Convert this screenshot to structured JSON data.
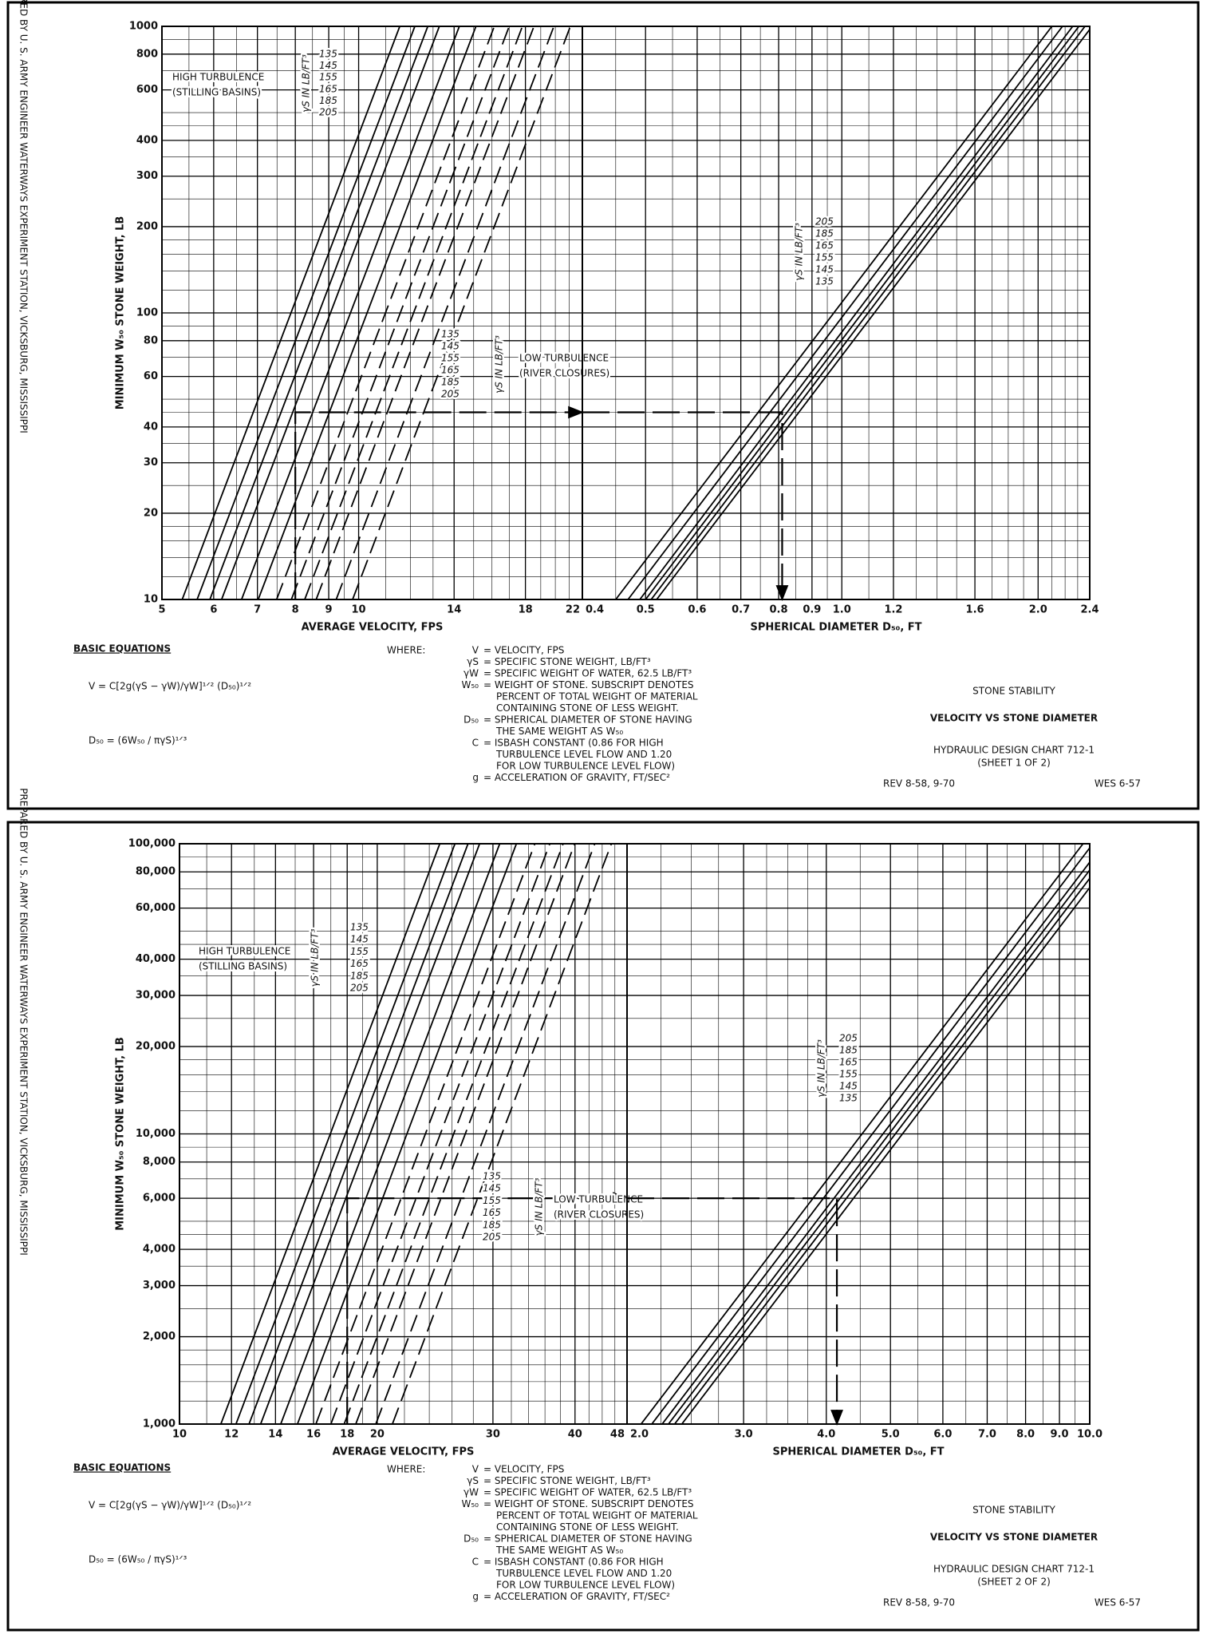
{
  "sheets": [
    {
      "side_note": "PREPARED BY U. S. ARMY ENGINEER WATERWAYS EXPERIMENT STATION, VICKSBURG, MISSISSIPPI",
      "equations_title": "BASIC EQUATIONS",
      "equations": [
        "V = C[2g(γS − γW)/γW]¹ᐟ² (D₅₀)¹ᐟ²",
        "D₅₀ = (6W₅₀ / πγS)¹ᐟ³"
      ],
      "where_label": "WHERE:",
      "definitions": [
        {
          "symbol": "V",
          "text": [
            "= VELOCITY, FPS"
          ]
        },
        {
          "symbol": "γS",
          "text": [
            "= SPECIFIC STONE WEIGHT, LB/FT³"
          ]
        },
        {
          "symbol": "γW",
          "text": [
            "= SPECIFIC WEIGHT OF WATER, 62.5 LB/FT³"
          ]
        },
        {
          "symbol": "W₅₀",
          "text": [
            "= WEIGHT OF STONE. SUBSCRIPT DENOTES",
            "PERCENT OF TOTAL WEIGHT OF MATERIAL",
            "CONTAINING STONE OF LESS WEIGHT."
          ]
        },
        {
          "symbol": "D₅₀",
          "text": [
            "= SPHERICAL DIAMETER OF STONE HAVING",
            "THE SAME WEIGHT AS W₅₀"
          ]
        },
        {
          "symbol": "C",
          "text": [
            "= ISBASH CONSTANT  (0.86 FOR HIGH",
            "TURBULENCE LEVEL FLOW AND 1.20",
            "FOR LOW TURBULENCE LEVEL FLOW)"
          ]
        },
        {
          "symbol": "g",
          "text": [
            "= ACCELERATION OF GRAVITY, FT/SEC²"
          ]
        }
      ],
      "title": "STONE STABILITY",
      "subtitle": "VELOCITY VS STONE DIAMETER",
      "chart_name": "HYDRAULIC DESIGN CHART 712-1",
      "sheet_label": "(SHEET 1 OF 2)",
      "revision": "REV 8-58, 9-70",
      "origin": "WES 6-57"
    },
    {
      "side_note": "PREPARED BY U. S. ARMY ENGINEER WATERWAYS EXPERIMENT STATION, VICKSBURG, MISSISSIPPI",
      "equations_title": "BASIC EQUATIONS",
      "equations": [
        "V = C[2g(γS − γW)/γW]¹ᐟ² (D₅₀)¹ᐟ²",
        "D₅₀ = (6W₅₀ / πγS)¹ᐟ³"
      ],
      "where_label": "WHERE:",
      "definitions": [
        {
          "symbol": "V",
          "text": [
            "= VELOCITY, FPS"
          ]
        },
        {
          "symbol": "γS",
          "text": [
            "= SPECIFIC STONE WEIGHT, LB/FT³"
          ]
        },
        {
          "symbol": "γW",
          "text": [
            "= SPECIFIC WEIGHT OF WATER, 62.5 LB/FT³"
          ]
        },
        {
          "symbol": "W₅₀",
          "text": [
            "= WEIGHT OF STONE. SUBSCRIPT DENOTES",
            "PERCENT OF TOTAL WEIGHT OF MATERIAL",
            "CONTAINING STONE OF LESS WEIGHT."
          ]
        },
        {
          "symbol": "D₅₀",
          "text": [
            "= SPHERICAL DIAMETER OF STONE HAVING",
            "THE SAME WEIGHT AS W₅₀"
          ]
        },
        {
          "symbol": "C",
          "text": [
            "= ISBASH CONSTANT  (0.86 FOR HIGH",
            "TURBULENCE LEVEL FLOW AND 1.20",
            "FOR LOW TURBULENCE LEVEL FLOW)"
          ]
        },
        {
          "symbol": "g",
          "text": [
            "= ACCELERATION OF GRAVITY, FT/SEC²"
          ]
        }
      ],
      "title": "STONE STABILITY",
      "subtitle": "VELOCITY VS STONE DIAMETER",
      "chart_name": "HYDRAULIC DESIGN CHART 712-1",
      "sheet_label": "(SHEET 2 OF 2)",
      "revision": "REV 8-58, 9-70",
      "origin": "WES 6-57"
    }
  ],
  "chart_data": [
    {
      "type": "line",
      "xscale": "log",
      "yscale": "log",
      "grid": true,
      "color": "#000000",
      "xlabel": "AVERAGE VELOCITY, FPS",
      "ylabel": "MINIMUM W₅₀ STONE WEIGHT, LB",
      "xlim": [
        5,
        22
      ],
      "xticks": [
        5,
        6,
        7,
        8,
        9,
        10,
        14,
        18,
        22
      ],
      "minor_xticks": [
        5.5,
        6.5,
        7.5,
        8.5,
        9.5,
        11,
        12,
        13,
        15,
        16,
        17,
        19,
        20,
        21
      ],
      "ylim": [
        10,
        1000
      ],
      "yticks": [
        10,
        20,
        30,
        40,
        60,
        80,
        100,
        200,
        300,
        400,
        600,
        800,
        1000
      ],
      "minor_yticks": [
        12,
        14,
        16,
        18,
        25,
        35,
        45,
        50,
        70,
        90,
        120,
        140,
        160,
        180,
        250,
        350,
        450,
        500,
        700,
        900
      ],
      "series_groups": [
        {
          "title": "HIGH TURBULENCE",
          "subtitle": "(STILLING BASINS)",
          "legend_title": "γS IN LB/FT³",
          "dashed": false,
          "series": [
            {
              "name": "135",
              "x": [
                5.37,
                11.56
              ],
              "values": [
                10,
                1000
              ]
            },
            {
              "name": "145",
              "x": [
                5.66,
                12.19
              ],
              "values": [
                10,
                1000
              ]
            },
            {
              "name": "155",
              "x": [
                5.92,
                12.76
              ],
              "values": [
                10,
                1000
              ]
            },
            {
              "name": "165",
              "x": [
                6.17,
                13.29
              ],
              "values": [
                10,
                1000
              ]
            },
            {
              "name": "185",
              "x": [
                6.62,
                14.26
              ],
              "values": [
                10,
                1000
              ]
            },
            {
              "name": "205",
              "x": [
                7.02,
                15.12
              ],
              "values": [
                10,
                1000
              ]
            }
          ]
        },
        {
          "title": "LOW TURBULENCE",
          "subtitle": "(RIVER CLOSURES)",
          "legend_title": "γS IN LB/FT³",
          "dashed": true,
          "series": [
            {
              "name": "135",
              "x": [
                7.49,
                16.13
              ],
              "values": [
                10,
                1000
              ]
            },
            {
              "name": "145",
              "x": [
                7.89,
                17.0
              ],
              "values": [
                10,
                1000
              ]
            },
            {
              "name": "155",
              "x": [
                8.27,
                17.81
              ],
              "values": [
                10,
                1000
              ]
            },
            {
              "name": "165",
              "x": [
                8.61,
                18.55
              ],
              "values": [
                10,
                1000
              ]
            },
            {
              "name": "185",
              "x": [
                9.24,
                19.9
              ],
              "values": [
                10,
                1000
              ]
            },
            {
              "name": "205",
              "x": [
                9.79,
                21.09
              ],
              "values": [
                10,
                1000
              ]
            }
          ]
        }
      ],
      "example": {
        "x": 8,
        "y": 45
      }
    },
    {
      "type": "line",
      "xscale": "log",
      "yscale": "log",
      "grid": true,
      "color": "#000000",
      "xlabel": "SPHERICAL DIAMETER D₅₀, FT",
      "xlim": [
        0.4,
        2.4
      ],
      "xticks": [
        0.4,
        0.5,
        0.6,
        0.7,
        0.8,
        0.9,
        {
          "value": 1,
          "label": "1.0"
        },
        1.2,
        1.6,
        {
          "value": 2,
          "label": "2.0"
        },
        2.4
      ],
      "minor_xticks": [
        0.45,
        0.55,
        0.65,
        0.75,
        0.85,
        0.95,
        1.1,
        1.3,
        1.4,
        1.5,
        1.7,
        1.8,
        1.9,
        2.1,
        2.2,
        2.3
      ],
      "series_groups": [
        {
          "legend_title": "γS IN LB/FT³",
          "dashed": false,
          "series": [
            {
              "name": "205",
              "x": [
                0.45,
                2.1
              ],
              "values": [
                10,
                1000
              ]
            },
            {
              "name": "185",
              "x": [
                0.47,
                2.18
              ],
              "values": [
                10,
                1000
              ]
            },
            {
              "name": "165",
              "x": [
                0.49,
                2.26
              ],
              "values": [
                10,
                1000
              ]
            },
            {
              "name": "155",
              "x": [
                0.5,
                2.31
              ],
              "values": [
                10,
                1000
              ]
            },
            {
              "name": "145",
              "x": [
                0.51,
                2.36
              ],
              "values": [
                10,
                1000
              ]
            },
            {
              "name": "135",
              "x": [
                0.52,
                2.42
              ],
              "values": [
                10,
                1000
              ]
            }
          ]
        }
      ],
      "example": {
        "x": 0.81,
        "y": 45
      }
    },
    {
      "type": "line",
      "xscale": "log",
      "yscale": "log",
      "grid": true,
      "color": "#000000",
      "xlabel": "AVERAGE VELOCITY, FPS",
      "ylabel": "MINIMUM W₅₀ STONE WEIGHT, LB",
      "xlim": [
        10,
        48
      ],
      "xticks": [
        10,
        12,
        14,
        16,
        18,
        20,
        30,
        40,
        48
      ],
      "minor_xticks": [
        11,
        13,
        15,
        17,
        19,
        22,
        24,
        26,
        28,
        32,
        34,
        36,
        38,
        42,
        44,
        46
      ],
      "ylim": [
        1000,
        100000
      ],
      "yticks": [
        {
          "value": 1000,
          "label": "1,000"
        },
        {
          "value": 2000,
          "label": "2,000"
        },
        {
          "value": 3000,
          "label": "3,000"
        },
        {
          "value": 4000,
          "label": "4,000"
        },
        {
          "value": 6000,
          "label": "6,000"
        },
        {
          "value": 8000,
          "label": "8,000"
        },
        {
          "value": 10000,
          "label": "10,000"
        },
        {
          "value": 20000,
          "label": "20,000"
        },
        {
          "value": 30000,
          "label": "30,000"
        },
        {
          "value": 40000,
          "label": "40,000"
        },
        {
          "value": 60000,
          "label": "60,000"
        },
        {
          "value": 80000,
          "label": "80,000"
        },
        {
          "value": 100000,
          "label": "100,000"
        }
      ],
      "minor_yticks": [
        1200,
        1400,
        1600,
        1800,
        2500,
        3500,
        4500,
        5000,
        7000,
        9000,
        12000,
        14000,
        16000,
        18000,
        25000,
        35000,
        45000,
        50000,
        70000,
        90000
      ],
      "series_groups": [
        {
          "title": "HIGH TURBULENCE",
          "subtitle": "(STILLING BASINS)",
          "legend_title": "γS IN LB/FT³",
          "dashed": false,
          "series": [
            {
              "name": "135",
              "x": [
                11.56,
                24.9
              ],
              "values": [
                1000,
                100000
              ]
            },
            {
              "name": "145",
              "x": [
                12.19,
                26.26
              ],
              "values": [
                1000,
                100000
              ]
            },
            {
              "name": "155",
              "x": [
                12.76,
                27.49
              ],
              "values": [
                1000,
                100000
              ]
            },
            {
              "name": "165",
              "x": [
                13.29,
                28.63
              ],
              "values": [
                1000,
                100000
              ]
            },
            {
              "name": "185",
              "x": [
                14.26,
                30.72
              ],
              "values": [
                1000,
                100000
              ]
            },
            {
              "name": "205",
              "x": [
                15.12,
                32.57
              ],
              "values": [
                1000,
                100000
              ]
            }
          ]
        },
        {
          "title": "LOW TURBULENCE",
          "subtitle": "(RIVER CLOSURES)",
          "legend_title": "γS IN LB/FT³",
          "dashed": true,
          "series": [
            {
              "name": "135",
              "x": [
                16.13,
                34.75
              ],
              "values": [
                1000,
                100000
              ]
            },
            {
              "name": "145",
              "x": [
                17.0,
                36.62
              ],
              "values": [
                1000,
                100000
              ]
            },
            {
              "name": "155",
              "x": [
                17.81,
                38.37
              ],
              "values": [
                1000,
                100000
              ]
            },
            {
              "name": "165",
              "x": [
                18.55,
                39.96
              ],
              "values": [
                1000,
                100000
              ]
            },
            {
              "name": "185",
              "x": [
                19.9,
                42.87
              ],
              "values": [
                1000,
                100000
              ]
            },
            {
              "name": "205",
              "x": [
                21.09,
                45.44
              ],
              "values": [
                1000,
                100000
              ]
            }
          ]
        }
      ],
      "example": {
        "x": 18,
        "y": 6000
      }
    },
    {
      "type": "line",
      "xscale": "log",
      "yscale": "log",
      "grid": true,
      "color": "#000000",
      "xlabel": "SPHERICAL DIAMETER D₅₀, FT",
      "xlim": [
        2,
        10
      ],
      "xticks": [
        {
          "value": 2,
          "label": "2.0"
        },
        {
          "value": 3,
          "label": "3.0"
        },
        {
          "value": 4,
          "label": "4.0"
        },
        {
          "value": 5,
          "label": "5.0"
        },
        {
          "value": 6,
          "label": "6.0"
        },
        {
          "value": 7,
          "label": "7.0"
        },
        {
          "value": 8,
          "label": "8.0"
        },
        {
          "value": 9,
          "label": "9.0"
        },
        {
          "value": 10,
          "label": "10.0"
        }
      ],
      "minor_xticks": [
        2.25,
        2.5,
        2.75,
        3.25,
        3.5,
        3.75,
        4.5,
        5.5,
        6.5,
        7.5,
        8.5,
        9.5
      ],
      "series_groups": [
        {
          "legend_title": "γS IN LB/FT³",
          "dashed": false,
          "series": [
            {
              "name": "205",
              "x": [
                2.1,
                9.77
              ],
              "values": [
                1000,
                100000
              ]
            },
            {
              "name": "185",
              "x": [
                2.18,
                10.11
              ],
              "values": [
                1000,
                100000
              ]
            },
            {
              "name": "165",
              "x": [
                2.26,
                10.5
              ],
              "values": [
                1000,
                100000
              ]
            },
            {
              "name": "155",
              "x": [
                2.31,
                10.72
              ],
              "values": [
                1000,
                100000
              ]
            },
            {
              "name": "145",
              "x": [
                2.36,
                10.96
              ],
              "values": [
                1000,
                100000
              ]
            },
            {
              "name": "135",
              "x": [
                2.42,
                11.23
              ],
              "values": [
                1000,
                100000
              ]
            }
          ]
        }
      ],
      "example": {
        "x": 4.15,
        "y": 6000
      }
    }
  ]
}
